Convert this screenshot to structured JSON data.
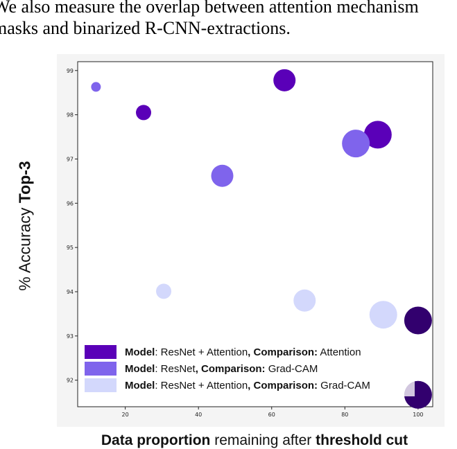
{
  "snippet": {
    "line1": "We also measure the overlap between attention mechanism",
    "line2": "masks and binarized R-CNN-extractions."
  },
  "chart_data": {
    "type": "scatter",
    "title": "",
    "xlabel": {
      "bold1": "Data proportion",
      "mid": " remaining after ",
      "bold2": "threshold cut"
    },
    "ylabel": {
      "plain": "% Accuracy ",
      "bold": "Top-3"
    },
    "xlim": [
      7,
      104
    ],
    "ylim": [
      91.4,
      99.2
    ],
    "xticks": [
      20,
      40,
      60,
      80,
      100
    ],
    "yticks": [
      92,
      93,
      94,
      95,
      96,
      97,
      98,
      99
    ],
    "grid": false,
    "legend_position": "lower-left",
    "series": [
      {
        "color": "#5a00b8",
        "legend": {
          "b1": "Model",
          "t1": ": ResNet + Attention",
          "b2": ", Comparison:",
          "t2": " Attention"
        },
        "points": [
          {
            "x": 25,
            "y": 98.05,
            "size": 1
          },
          {
            "x": 63.5,
            "y": 98.78,
            "size": 2
          },
          {
            "x": 89,
            "y": 97.55,
            "size": 3
          }
        ]
      },
      {
        "color": "#7f64ec",
        "legend": {
          "b1": "Model",
          "t1": ": ResNet",
          "b2": ", Comparison:",
          "t2": " Grad-CAM"
        },
        "points": [
          {
            "x": 12,
            "y": 98.63,
            "size": 0
          },
          {
            "x": 46.5,
            "y": 96.62,
            "size": 2
          },
          {
            "x": 83,
            "y": 97.35,
            "size": 3
          }
        ]
      },
      {
        "color": "#d3d8fc",
        "legend": {
          "b1": "Model",
          "t1": ": ResNet + Attention",
          "b2": ", Comparison:",
          "t2": " Grad-CAM"
        },
        "points": [
          {
            "x": 30.5,
            "y": 94.01,
            "size": 1
          },
          {
            "x": 69,
            "y": 93.8,
            "size": 2
          },
          {
            "x": 90.5,
            "y": 93.48,
            "size": 3
          }
        ]
      },
      {
        "color": "#32006e",
        "points": [
          {
            "x": 100,
            "y": 93.35,
            "size": 3
          },
          {
            "x": 100,
            "y": 91.67,
            "size": 3
          }
        ]
      }
    ]
  }
}
